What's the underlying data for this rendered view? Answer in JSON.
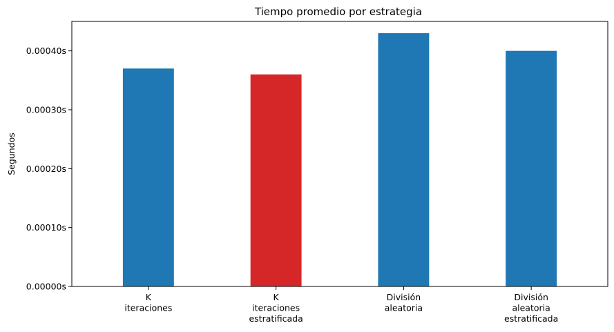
{
  "chart_data": {
    "type": "bar",
    "title": "Tiempo promedio por estrategia",
    "xlabel": "",
    "ylabel": "Segundos",
    "categories": [
      [
        "K",
        "iteraciones"
      ],
      [
        "K",
        "iteraciones",
        "estratificada"
      ],
      [
        "División",
        "aleatoria"
      ],
      [
        "División",
        "aleatoria",
        "estratificada"
      ]
    ],
    "values": [
      0.00037,
      0.00036,
      0.00043,
      0.0004
    ],
    "bar_colors": [
      "#1f77b4",
      "#d62728",
      "#1f77b4",
      "#1f77b4"
    ],
    "ylim": [
      0,
      0.00045
    ],
    "yticks": [
      0.0,
      0.0001,
      0.0002,
      0.0003,
      0.0004
    ],
    "ytick_labels": [
      "0.00000s",
      "0.00010s",
      "0.00020s",
      "0.00030s",
      "0.00040s"
    ],
    "grid": false,
    "legend": null
  }
}
